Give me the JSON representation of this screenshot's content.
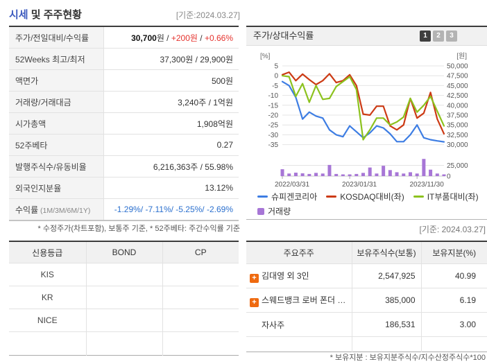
{
  "colors": {
    "accent_blue": "#3d5bbf",
    "value_red": "#e5322d",
    "value_blue": "#2a6fce",
    "line_blue": "#3d7de3",
    "line_red": "#cc3a14",
    "line_green": "#8cc21e",
    "bar_purple": "#a776d6"
  },
  "header": {
    "title_em": "시세",
    "title_rest": " 및 주주현황",
    "ref_date": "[기준:2024.03.27]"
  },
  "quote_table": {
    "rows": [
      {
        "label": "주가/전일대비/수익률",
        "parts": [
          {
            "t": "30,700",
            "b": 1
          },
          {
            "t": "원 / "
          },
          {
            "t": "+200원",
            "c": "red"
          },
          {
            "t": " / "
          },
          {
            "t": "+0.66%",
            "c": "red"
          }
        ]
      },
      {
        "label": "52Weeks 최고/최저",
        "parts": [
          {
            "t": "37,300원 / 29,900원"
          }
        ]
      },
      {
        "label": "액면가",
        "parts": [
          {
            "t": "500원"
          }
        ]
      },
      {
        "label": "거래량/거래대금",
        "parts": [
          {
            "t": "3,240주 / 1억원"
          }
        ]
      },
      {
        "label": "시가총액",
        "parts": [
          {
            "t": "1,908억원"
          }
        ]
      },
      {
        "label": "52주베타",
        "parts": [
          {
            "t": "0.27"
          }
        ]
      },
      {
        "label": "발행주식수/유동비율",
        "parts": [
          {
            "t": "6,216,363주 / 55.98%"
          }
        ]
      },
      {
        "label": "외국인지분율",
        "parts": [
          {
            "t": "13.12%"
          }
        ]
      },
      {
        "label": "수익률",
        "label_suffix": " (1M/3M/6M/1Y)",
        "parts": [
          {
            "t": "-1.29%/ -7.11%/ -5.25%/ -2.69%",
            "c": "blue"
          }
        ]
      }
    ],
    "footnote": "* 수정주가(차트포함), 보통주 기준, * 52주베타: 주간수익률 기준"
  },
  "chart_panel": {
    "title": "주가/상대수익률",
    "buttons": [
      "1",
      "2",
      "3"
    ],
    "active_button": "1",
    "ref_date": "[기준: 2024.03.27]"
  },
  "chart_data": {
    "type": "line+bar",
    "title": "주가/상대수익률",
    "x": [
      "2022/03",
      "2022/04",
      "2022/05",
      "2022/06",
      "2022/07",
      "2022/08",
      "2022/09",
      "2022/10",
      "2022/11",
      "2022/12",
      "2023/01",
      "2023/02",
      "2023/03",
      "2023/04",
      "2023/05",
      "2023/06",
      "2023/07",
      "2023/08",
      "2023/09",
      "2023/10",
      "2023/11",
      "2023/12",
      "2024/01",
      "2024/02",
      "2024/03"
    ],
    "x_tick_labels": [
      "2022/03/31",
      "2023/01/31",
      "2023/11/30"
    ],
    "x_tick_index": [
      0,
      10,
      20
    ],
    "left_axis": {
      "unit": "[%]",
      "ticks": [
        5,
        0,
        -5,
        -10,
        -15,
        -20,
        -25,
        -30,
        -35
      ],
      "range": [
        5,
        -35
      ]
    },
    "right_axis": {
      "unit": "[원]",
      "ticks": [
        50000,
        47500,
        45000,
        42500,
        40000,
        37500,
        35000,
        32500,
        30000
      ]
    },
    "volume_axis": {
      "ticks": [
        25000,
        0
      ]
    },
    "grid": true,
    "legend_position": "bottom",
    "series": [
      {
        "name": "슈피겐코리아",
        "type": "line",
        "axis": "right",
        "color": "#3d7de3",
        "values": [
          46000,
          45000,
          42000,
          36500,
          38250,
          37250,
          36750,
          33750,
          32500,
          32000,
          34750,
          33250,
          31750,
          33000,
          34750,
          34250,
          32750,
          30750,
          30750,
          32500,
          35000,
          31750,
          31250,
          30950,
          30700
        ]
      },
      {
        "name": "KOSDAQ대비(좌)",
        "type": "line",
        "axis": "left",
        "color": "#cc3a14",
        "values": [
          0.5,
          1.8,
          -2.5,
          0.8,
          -2,
          -4.5,
          -2.5,
          1,
          -3.5,
          -2.5,
          0.5,
          -5,
          -19.5,
          -20,
          -15.5,
          -15.5,
          -25.5,
          -27.5,
          -25,
          -11.5,
          -21.5,
          -19,
          -8.5,
          -22,
          -29.5
        ]
      },
      {
        "name": "IT부품대비(좌)",
        "type": "line",
        "axis": "left",
        "color": "#8cc21e",
        "values": [
          0,
          -0.5,
          -10.5,
          -4,
          -13.5,
          -5,
          -12,
          -11.5,
          -5.5,
          -3,
          -0.5,
          -7,
          -32.5,
          -27.5,
          -21.5,
          -21.5,
          -25,
          -23.5,
          -21,
          -11.5,
          -18.5,
          -15,
          -10.5,
          -18,
          -25.5
        ]
      },
      {
        "name": "거래량",
        "type": "bar",
        "axis": "volume",
        "color": "#a776d6",
        "values": [
          16000,
          6000,
          8000,
          6500,
          5000,
          7500,
          6000,
          26000,
          5000,
          4000,
          4000,
          5000,
          7500,
          20000,
          6000,
          24000,
          14000,
          9000,
          6000,
          9000,
          6000,
          40000,
          15000,
          6000,
          4000
        ]
      }
    ]
  },
  "credit_table": {
    "headers": [
      "신용등급",
      "BOND",
      "CP"
    ],
    "rows": [
      {
        "agency": "KIS",
        "bond": "",
        "cp": ""
      },
      {
        "agency": "KR",
        "bond": "",
        "cp": ""
      },
      {
        "agency": "NICE",
        "bond": "",
        "cp": ""
      }
    ]
  },
  "holders_table": {
    "headers": [
      "주요주주",
      "보유주식수(보통)",
      "보유지분(%)"
    ],
    "rows": [
      {
        "expand": true,
        "name": "김대영 외 3인",
        "shares": "2,547,925",
        "pct": "40.99"
      },
      {
        "expand": true,
        "name": "스웨드뱅크 로버 폰더 …",
        "shares": "385,000",
        "pct": "6.19"
      },
      {
        "expand": false,
        "name": "자사주",
        "shares": "186,531",
        "pct": "3.00"
      }
    ],
    "footnote": "* 보유지분 : 보유지분주식수/지수산정주식수*100"
  },
  "icons": {
    "expand": "expand-plus-icon",
    "plus_glyph": "+"
  }
}
